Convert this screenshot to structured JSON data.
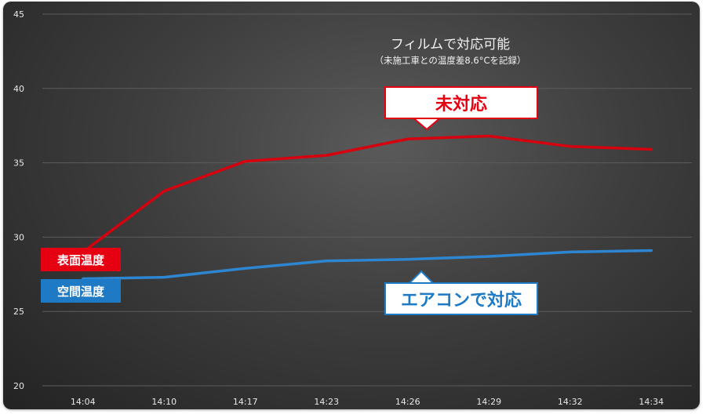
{
  "chart_data": {
    "type": "line",
    "title": "フィルムで対応可能",
    "subtitle": "（未施工車との温度差8.6°Cを記録）",
    "categories": [
      "14:04",
      "14:10",
      "14:17",
      "14:23",
      "14:26",
      "14:29",
      "14:32",
      "14:34"
    ],
    "ylim": [
      20,
      45
    ],
    "yticks": [
      20,
      25,
      30,
      35,
      40,
      45
    ],
    "grid": true,
    "series": [
      {
        "name": "表面温度",
        "color": "#d7000f",
        "values": [
          29.0,
          33.1,
          35.1,
          35.5,
          36.6,
          36.8,
          36.1,
          35.9
        ]
      },
      {
        "name": "空間温度",
        "color": "#2e86d1",
        "values": [
          27.2,
          27.3,
          27.9,
          28.4,
          28.5,
          28.7,
          29.0,
          29.1
        ]
      }
    ],
    "annotations": {
      "surface_callout": "未対応",
      "air_callout": "エアコンで対応"
    }
  }
}
